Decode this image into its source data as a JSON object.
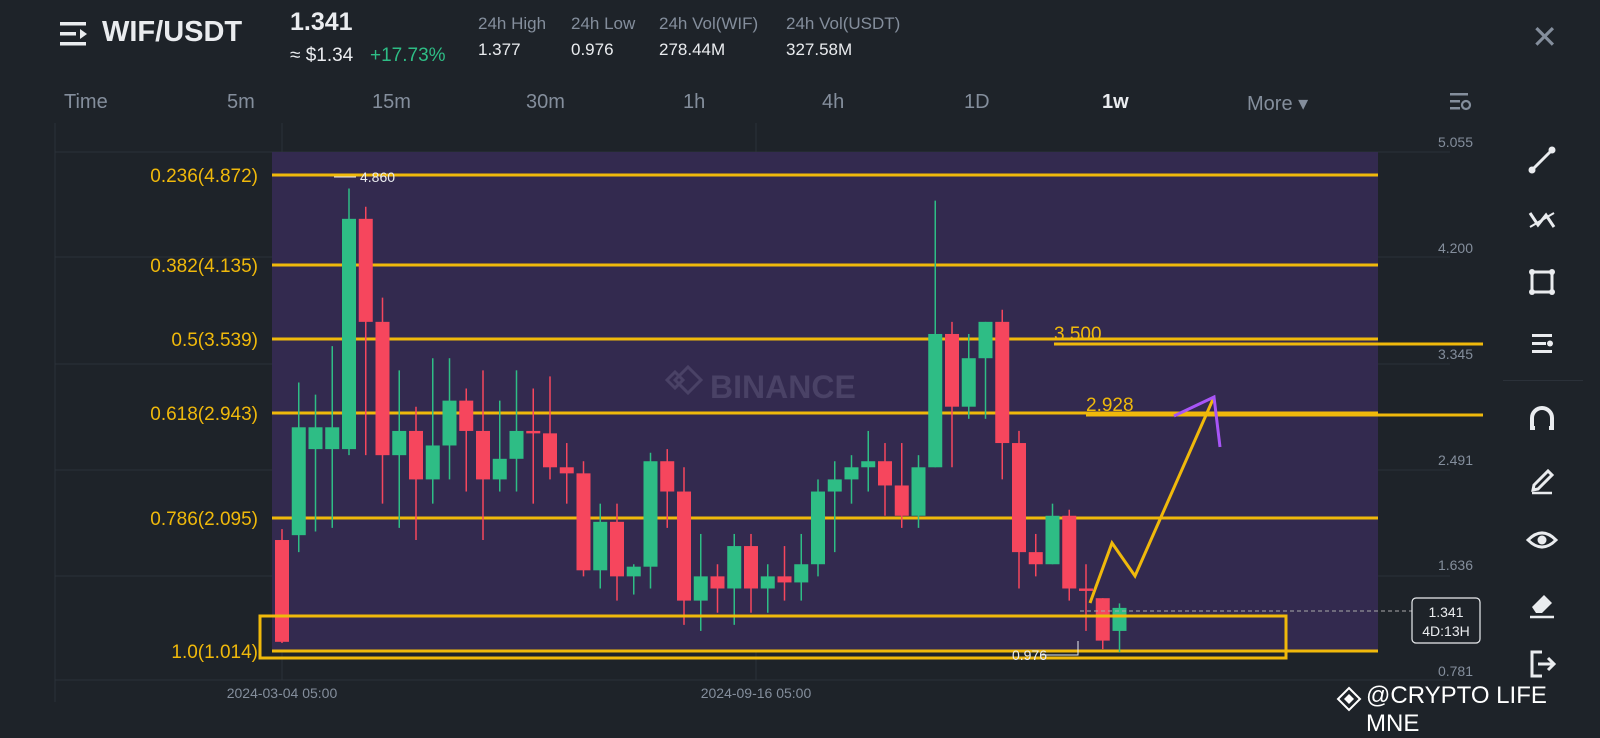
{
  "header": {
    "pair": "WIF/USDT",
    "price": "1.341",
    "usd_price": "≈ $1.34",
    "change": "+17.73%",
    "stats": [
      {
        "label": "24h High",
        "value": "1.377"
      },
      {
        "label": "24h Low",
        "value": "0.976"
      },
      {
        "label": "24h Vol(WIF)",
        "value": "278.44M"
      },
      {
        "label": "24h Vol(USDT)",
        "value": "327.58M"
      }
    ]
  },
  "timeframes": [
    {
      "label": "Time"
    },
    {
      "label": "5m"
    },
    {
      "label": "15m"
    },
    {
      "label": "30m"
    },
    {
      "label": "1h"
    },
    {
      "label": "4h"
    },
    {
      "label": "1D"
    },
    {
      "label": "1w",
      "active": true
    },
    {
      "label": "More ▾"
    }
  ],
  "chart_data": {
    "type": "candlestick",
    "price_axis_ticks": [
      "5.055",
      "4.200",
      "3.345",
      "2.491",
      "1.636",
      "0.781"
    ],
    "time_axis_ticks": [
      "2024-03-04 05:00",
      "2024-09-16 05:00"
    ],
    "fib_levels": [
      {
        "label": "0.236(4.872)",
        "price": 4.872
      },
      {
        "label": "0.382(4.135)",
        "price": 4.135
      },
      {
        "label": "0.5(3.539)",
        "price": 3.539
      },
      {
        "label": "0.618(2.943)",
        "price": 2.943
      },
      {
        "label": "0.786(2.095)",
        "price": 2.095
      },
      {
        "label": "1.0(1.014)",
        "price": 1.014
      }
    ],
    "annotations": [
      {
        "label": "3.500",
        "price": 3.5
      },
      {
        "label": "2.928",
        "price": 2.928
      }
    ],
    "high_marker": "4.860",
    "low_marker": "0.976",
    "current_price": "1.341",
    "countdown": "4D:13H",
    "watermark_logo": "BINANCE",
    "candles": [
      [
        1.9,
        1.06,
        1.05,
        1.99
      ],
      [
        1.94,
        2.83,
        1.8,
        3.2
      ],
      [
        2.65,
        2.83,
        1.97,
        3.1
      ],
      [
        2.65,
        2.83,
        2.0,
        3.5
      ],
      [
        2.65,
        4.55,
        2.6,
        4.8
      ],
      [
        4.55,
        3.7,
        2.6,
        4.65
      ],
      [
        3.7,
        2.6,
        2.2,
        3.9
      ],
      [
        2.6,
        2.8,
        2.0,
        3.3
      ],
      [
        2.8,
        2.4,
        1.9,
        3.0
      ],
      [
        2.4,
        2.68,
        2.2,
        3.4
      ],
      [
        2.68,
        3.05,
        2.4,
        3.4
      ],
      [
        3.05,
        2.8,
        2.3,
        3.15
      ],
      [
        2.8,
        2.4,
        1.9,
        3.3
      ],
      [
        2.4,
        2.57,
        2.3,
        3.05
      ],
      [
        2.57,
        2.8,
        2.3,
        3.3
      ],
      [
        2.8,
        2.78,
        2.2,
        3.15
      ],
      [
        2.78,
        2.5,
        2.4,
        3.25
      ],
      [
        2.5,
        2.45,
        2.2,
        2.7
      ],
      [
        2.45,
        1.65,
        1.6,
        2.55
      ],
      [
        1.65,
        2.05,
        1.5,
        2.2
      ],
      [
        2.05,
        1.6,
        1.4,
        2.2
      ],
      [
        1.6,
        1.68,
        1.45,
        1.7
      ],
      [
        1.68,
        2.55,
        1.5,
        2.62
      ],
      [
        2.55,
        2.3,
        2.0,
        2.65
      ],
      [
        2.3,
        1.4,
        1.2,
        2.5
      ],
      [
        1.4,
        1.6,
        1.15,
        1.95
      ],
      [
        1.6,
        1.5,
        1.3,
        1.7
      ],
      [
        1.5,
        1.85,
        1.2,
        1.95
      ],
      [
        1.85,
        1.5,
        1.3,
        1.95
      ],
      [
        1.5,
        1.6,
        1.3,
        1.7
      ],
      [
        1.6,
        1.55,
        1.4,
        1.85
      ],
      [
        1.55,
        1.7,
        1.4,
        1.95
      ],
      [
        1.7,
        2.3,
        1.6,
        2.4
      ],
      [
        2.3,
        2.4,
        1.8,
        2.55
      ],
      [
        2.4,
        2.5,
        2.2,
        2.6
      ],
      [
        2.5,
        2.55,
        2.3,
        2.8
      ],
      [
        2.55,
        2.35,
        2.1,
        2.7
      ],
      [
        2.35,
        2.1,
        2.0,
        2.7
      ],
      [
        2.1,
        2.5,
        2.0,
        2.6
      ],
      [
        2.5,
        3.6,
        2.5,
        4.7
      ],
      [
        3.6,
        3.0,
        2.5,
        3.7
      ],
      [
        3.0,
        3.4,
        2.9,
        3.6
      ],
      [
        3.4,
        3.7,
        2.9,
        3.7
      ],
      [
        3.7,
        2.7,
        2.4,
        3.8
      ],
      [
        2.7,
        1.8,
        1.5,
        2.8
      ],
      [
        1.8,
        1.7,
        1.6,
        1.95
      ],
      [
        1.7,
        2.1,
        1.7,
        2.2
      ],
      [
        2.1,
        1.5,
        1.4,
        2.15
      ],
      [
        1.5,
        1.48,
        1.15,
        1.7
      ],
      [
        1.42,
        1.07,
        1.0,
        1.42
      ],
      [
        1.15,
        1.34,
        0.976,
        1.377
      ]
    ]
  },
  "watermark": "@CRYPTO LIFE MNE",
  "tools": [
    {
      "icon": "trend-line-icon"
    },
    {
      "icon": "multi-line-icon"
    },
    {
      "icon": "rectangle-icon"
    },
    {
      "icon": "fib-icon"
    },
    {
      "icon": "magnet-icon"
    },
    {
      "icon": "brush-icon"
    },
    {
      "icon": "eye-icon"
    },
    {
      "icon": "eraser-icon"
    },
    {
      "icon": "exit-icon"
    }
  ]
}
